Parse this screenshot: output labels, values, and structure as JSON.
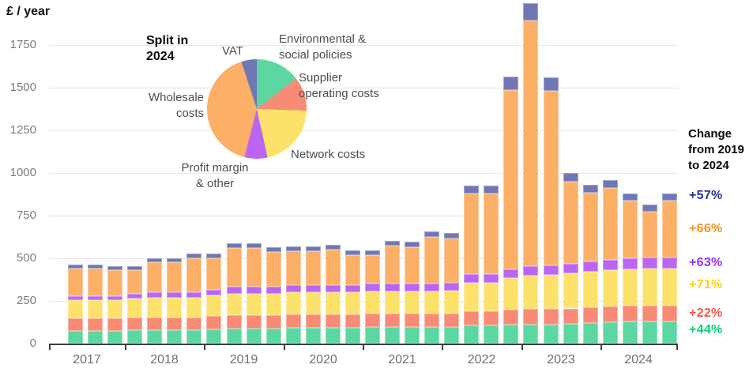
{
  "page": {
    "unit_label": "£ / year"
  },
  "pie": {
    "title": "Split in\n2024",
    "labels": {
      "vat": "VAT",
      "env": "Environmental &\nsocial policies",
      "supplier": "Supplier\noperating costs",
      "network": "Network costs",
      "profit": "Profit margin\n& other",
      "wholesale": "Wholesale\ncosts"
    }
  },
  "change_panel": {
    "title": "Change\nfrom 2019\nto 2024",
    "items": [
      {
        "key": "vat",
        "label": "+57%",
        "color": "#2e3192"
      },
      {
        "key": "wholesale",
        "label": "+66%",
        "color": "#f7941d"
      },
      {
        "key": "profit",
        "label": "+63%",
        "color": "#9b2ef2"
      },
      {
        "key": "network",
        "label": "+71%",
        "color": "#fdd116"
      },
      {
        "key": "supplier",
        "label": "+22%",
        "color": "#f9564a"
      },
      {
        "key": "env",
        "label": "+44%",
        "color": "#10d078"
      }
    ]
  },
  "chart_data": [
    {
      "type": "bar",
      "stacked": true,
      "title": "",
      "xlabel": "",
      "ylabel": "£ / year",
      "ylim": [
        0,
        2000
      ],
      "yticks": [
        0,
        250,
        500,
        750,
        1000,
        1250,
        1500,
        1750
      ],
      "grid": "horizontal",
      "x_year_labels": [
        "2017",
        "2018",
        "2019",
        "2020",
        "2021",
        "2022",
        "2023",
        "2024"
      ],
      "bars_per_year": [
        3,
        4,
        4,
        4,
        4,
        4,
        4,
        4
      ],
      "x_period": "quarterly bars, 2017 Q2 through 2024 Q4",
      "series": [
        {
          "key": "env",
          "name": "Environmental & social policies",
          "color": "#5dd7a1",
          "values": [
            75,
            75,
            75,
            78,
            80,
            80,
            80,
            85,
            90,
            90,
            90,
            92,
            92,
            92,
            92,
            95,
            95,
            95,
            95,
            96,
            105,
            105,
            110,
            112,
            113,
            115,
            120,
            125,
            128,
            130,
            130
          ]
        },
        {
          "key": "supplier",
          "name": "Supplier operating costs",
          "color": "#f88b76",
          "values": [
            72,
            72,
            72,
            73,
            74,
            74,
            74,
            76,
            77,
            77,
            77,
            80,
            80,
            80,
            80,
            81,
            81,
            81,
            81,
            82,
            85,
            85,
            88,
            90,
            90,
            91,
            92,
            93,
            93,
            94,
            94
          ]
        },
        {
          "key": "network",
          "name": "Network costs",
          "color": "#fce26a",
          "values": [
            108,
            108,
            108,
            112,
            115,
            115,
            115,
            120,
            126,
            126,
            126,
            128,
            128,
            128,
            128,
            130,
            130,
            130,
            130,
            132,
            168,
            168,
            185,
            195,
            200,
            205,
            210,
            212,
            214,
            215,
            216
          ]
        },
        {
          "key": "profit",
          "name": "Profit margin & other",
          "color": "#bb66f2",
          "values": [
            25,
            25,
            25,
            28,
            30,
            30,
            30,
            35,
            40,
            40,
            40,
            42,
            42,
            42,
            42,
            44,
            44,
            44,
            44,
            45,
            48,
            48,
            52,
            55,
            56,
            58,
            60,
            63,
            64,
            65,
            65
          ]
        },
        {
          "key": "wholesale",
          "name": "Wholesale costs",
          "color": "#fbaf67",
          "values": [
            160,
            160,
            151,
            140,
            176,
            176,
            203,
            186,
            226,
            226,
            204,
            200,
            200,
            208,
            177,
            169,
            222,
            217,
            273,
            261,
            473,
            473,
            1052,
            1443,
            1023,
            481,
            402,
            419,
            337,
            270,
            331
          ]
        },
        {
          "key": "vat",
          "name": "VAT",
          "color": "#6f77b4",
          "values": [
            23,
            23,
            23,
            23,
            25,
            25,
            26,
            26,
            29,
            29,
            28,
            28,
            28,
            29,
            27,
            27,
            30,
            30,
            33,
            32,
            46,
            46,
            78,
            100,
            78,
            50,
            46,
            48,
            44,
            41,
            44
          ]
        }
      ],
      "bar_totals": [
        463,
        463,
        454,
        454,
        500,
        500,
        528,
        528,
        588,
        588,
        565,
        570,
        570,
        579,
        546,
        546,
        602,
        597,
        656,
        648,
        925,
        925,
        1565,
        1995,
        1560,
        1000,
        930,
        960,
        880,
        815,
        880
      ]
    },
    {
      "type": "pie",
      "title": "Split in 2024",
      "start_angle_deg": 0,
      "direction": "clockwise",
      "slices": [
        {
          "key": "env",
          "label": "Environmental & social policies",
          "pct": 14.5,
          "color": "#5dd7a1"
        },
        {
          "key": "supplier",
          "label": "Supplier operating costs",
          "pct": 11,
          "color": "#f88b76"
        },
        {
          "key": "network",
          "label": "Network costs",
          "pct": 21,
          "color": "#fce26a"
        },
        {
          "key": "profit",
          "label": "Profit margin & other",
          "pct": 7.5,
          "color": "#bb66f2"
        },
        {
          "key": "wholesale",
          "label": "Wholesale costs",
          "pct": 41,
          "color": "#fbaf67"
        },
        {
          "key": "vat",
          "label": "VAT",
          "pct": 5,
          "color": "#6f77b4"
        }
      ]
    }
  ]
}
